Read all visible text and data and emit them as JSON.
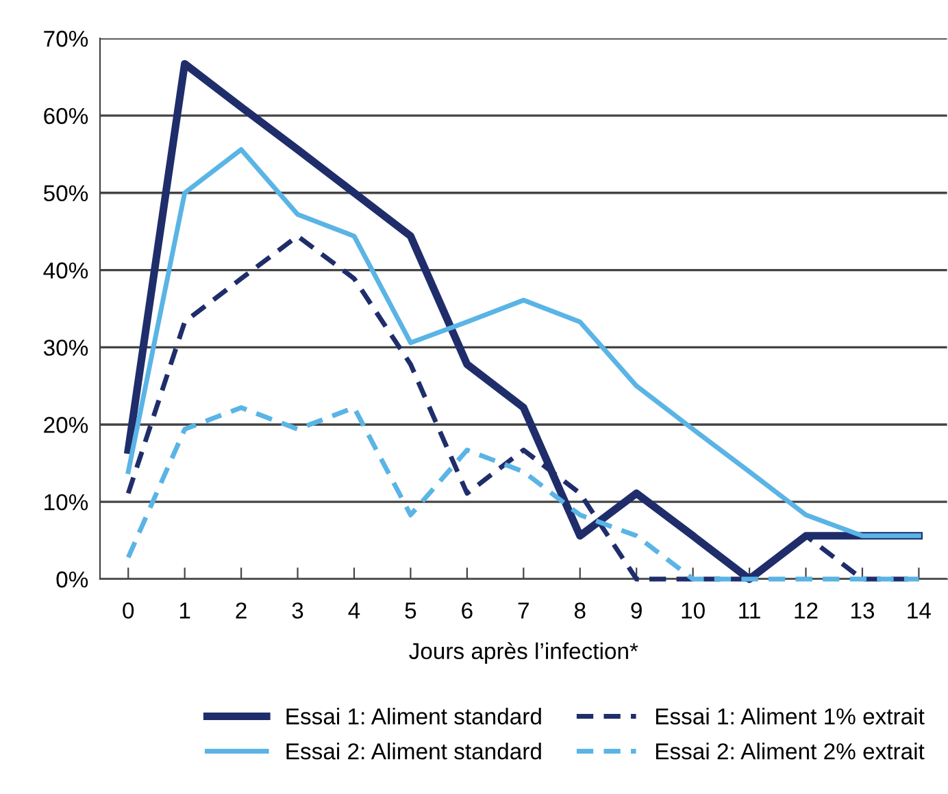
{
  "chart_data": {
    "type": "line",
    "xlabel": "Jours après l’infection*",
    "categories": [
      "0",
      "1",
      "2",
      "3",
      "4",
      "5",
      "6",
      "7",
      "8",
      "9",
      "10",
      "11",
      "12",
      "13",
      "14"
    ],
    "series": [
      {
        "name": "Essai 1: Aliment standard",
        "color": "#1f2d6b",
        "line_style": "solid",
        "values": [
          16.7,
          66.7,
          61.1,
          55.6,
          50.0,
          44.4,
          27.8,
          22.2,
          5.6,
          11.1,
          5.6,
          0,
          5.6,
          5.6,
          5.6
        ]
      },
      {
        "name": "Essai 1: Aliment 1% extrait",
        "color": "#1f2d6b",
        "line_style": "dashed",
        "values": [
          11.1,
          33.3,
          38.9,
          44.4,
          38.9,
          27.8,
          11.1,
          16.7,
          11.1,
          0,
          0,
          0,
          5.6,
          0,
          0
        ]
      },
      {
        "name": "Essai 2: Aliment standard",
        "color": "#5ab4e5",
        "line_style": "solid",
        "values": [
          13.9,
          50.0,
          55.6,
          47.2,
          44.4,
          30.6,
          33.3,
          36.1,
          33.3,
          25.0,
          19.4,
          13.9,
          8.3,
          5.6,
          5.6
        ]
      },
      {
        "name": "Essai 2: Aliment 2% extrait",
        "color": "#5ab4e5",
        "line_style": "dashed",
        "values": [
          2.8,
          19.4,
          22.2,
          19.4,
          22.2,
          8.3,
          16.7,
          13.9,
          8.3,
          5.6,
          0,
          0,
          0,
          0,
          0
        ]
      }
    ],
    "ylim": [
      0,
      70
    ],
    "yticks": [
      {
        "value": 0,
        "label": "0%"
      },
      {
        "value": 10,
        "label": "10%"
      },
      {
        "value": 20,
        "label": "20%"
      },
      {
        "value": 30,
        "label": "30%"
      },
      {
        "value": 40,
        "label": "40%"
      },
      {
        "value": 50,
        "label": "50%"
      },
      {
        "value": 60,
        "label": "60%"
      },
      {
        "value": 70,
        "label": "70%"
      }
    ],
    "grid": "y",
    "legend": "bottom",
    "marker": "none"
  }
}
